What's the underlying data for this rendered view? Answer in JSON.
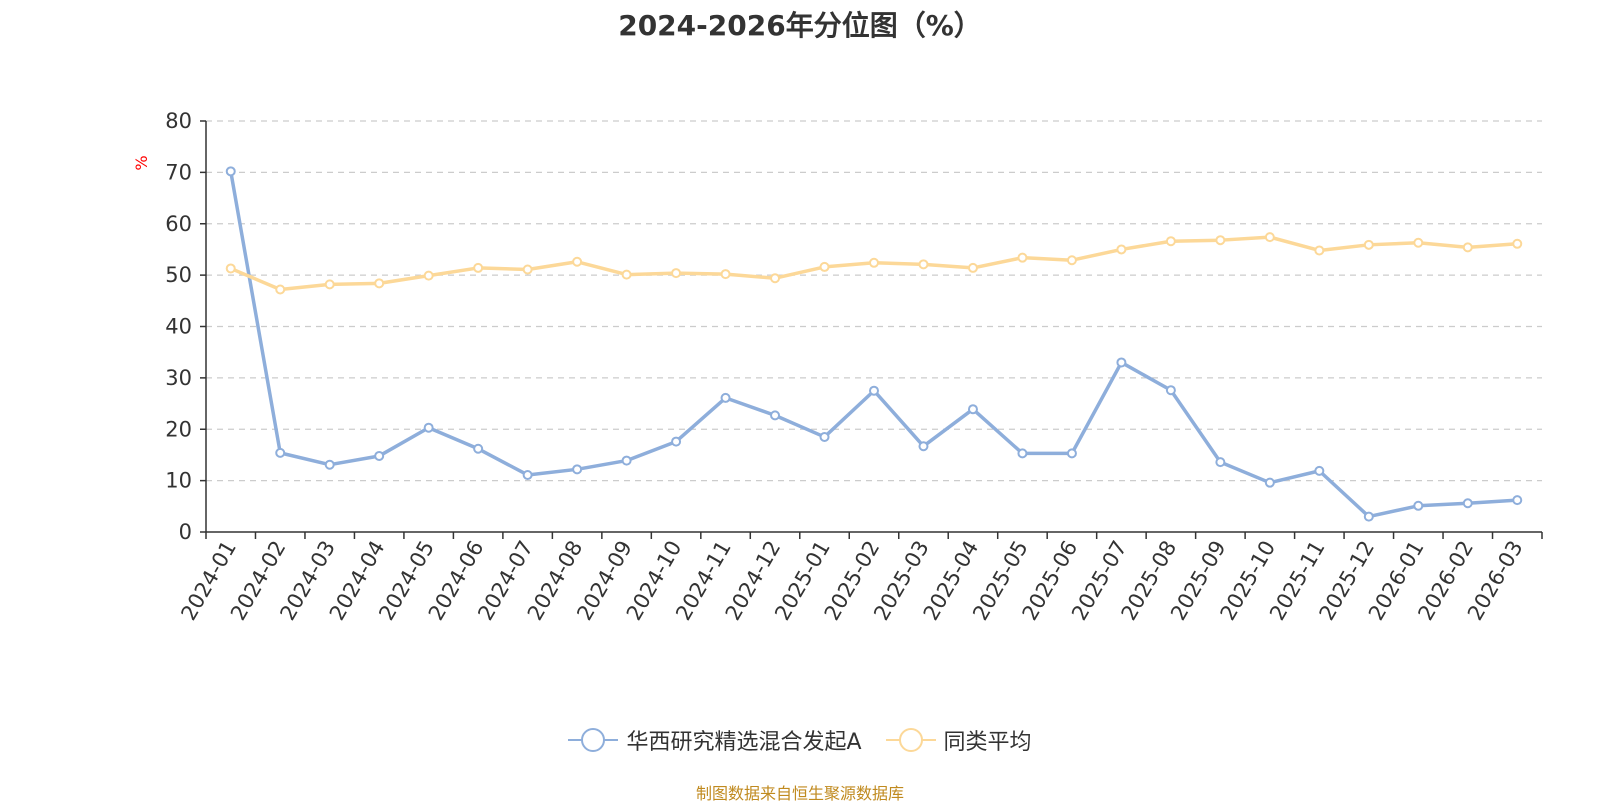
{
  "chart_data": {
    "type": "line",
    "title": "2024-2026年分位图（%）",
    "ylabel": "%",
    "xlabel": "",
    "ylim": [
      0,
      80
    ],
    "yticks": [
      0,
      10,
      20,
      30,
      40,
      50,
      60,
      70,
      80
    ],
    "grid": true,
    "legend_position": "bottom",
    "categories": [
      "2024-01",
      "2024-02",
      "2024-03",
      "2024-04",
      "2024-05",
      "2024-06",
      "2024-07",
      "2024-08",
      "2024-09",
      "2024-10",
      "2024-11",
      "2024-12",
      "2025-01",
      "2025-02",
      "2025-03",
      "2025-04",
      "2025-05",
      "2025-06",
      "2025-07",
      "2025-08",
      "2025-09",
      "2025-10",
      "2025-11",
      "2025-12",
      "2026-01",
      "2026-02",
      "2026-03"
    ],
    "series": [
      {
        "name": "华西研究精选混合发起A",
        "color": "#8eaedb",
        "values": [
          70.2,
          15.4,
          13.1,
          14.8,
          20.3,
          16.2,
          11.1,
          12.2,
          13.9,
          17.6,
          26.1,
          22.7,
          18.5,
          27.5,
          16.7,
          23.9,
          15.3,
          15.3,
          33.0,
          27.6,
          13.6,
          9.6,
          11.9,
          3.0,
          5.1,
          5.6,
          6.2
        ]
      },
      {
        "name": "同类平均",
        "color": "#fcd898",
        "values": [
          51.3,
          47.2,
          48.2,
          48.4,
          49.9,
          51.4,
          51.1,
          52.6,
          50.1,
          50.4,
          50.2,
          49.4,
          51.6,
          52.4,
          52.1,
          51.4,
          53.4,
          52.9,
          55.0,
          56.6,
          56.8,
          57.4,
          54.8,
          55.9,
          56.3,
          55.4,
          56.1
        ]
      }
    ],
    "axis_color": "#333333",
    "grid_color": "#cccccc",
    "ylabel_color": "#ff0000"
  },
  "footer": {
    "source": "制图数据来自恒生聚源数据库"
  }
}
